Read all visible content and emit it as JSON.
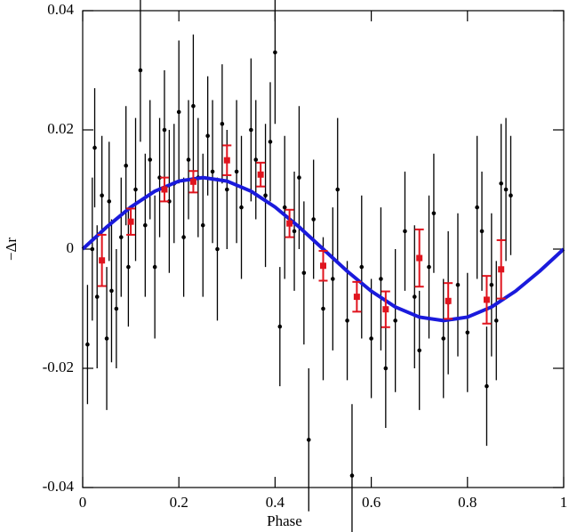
{
  "chart_data": {
    "type": "errorbar",
    "xlabel": "Phase",
    "ylabel": "−Δr",
    "xlim": [
      0,
      1
    ],
    "ylim": [
      -0.04,
      0.04
    ],
    "xticks": [
      0,
      0.2,
      0.4,
      0.6,
      0.8,
      1
    ],
    "yticks": [
      -0.04,
      -0.02,
      0,
      0.02,
      0.04
    ],
    "points": {
      "color": "#000000",
      "x": [
        0.01,
        0.02,
        0.025,
        0.03,
        0.04,
        0.05,
        0.055,
        0.06,
        0.07,
        0.08,
        0.09,
        0.095,
        0.11,
        0.12,
        0.13,
        0.14,
        0.15,
        0.16,
        0.17,
        0.18,
        0.19,
        0.2,
        0.21,
        0.22,
        0.23,
        0.24,
        0.25,
        0.26,
        0.27,
        0.28,
        0.29,
        0.3,
        0.32,
        0.33,
        0.35,
        0.36,
        0.38,
        0.39,
        0.4,
        0.41,
        0.42,
        0.44,
        0.45,
        0.46,
        0.47,
        0.48,
        0.5,
        0.52,
        0.53,
        0.55,
        0.56,
        0.58,
        0.6,
        0.62,
        0.63,
        0.65,
        0.67,
        0.69,
        0.7,
        0.72,
        0.73,
        0.75,
        0.76,
        0.78,
        0.8,
        0.82,
        0.83,
        0.84,
        0.85,
        0.86,
        0.87,
        0.88,
        0.89
      ],
      "values": [
        -0.016,
        0.0,
        0.017,
        -0.008,
        0.009,
        -0.015,
        0.008,
        -0.007,
        -0.01,
        0.002,
        0.014,
        -0.003,
        0.01,
        0.03,
        0.004,
        0.015,
        -0.003,
        0.012,
        0.02,
        0.008,
        0.011,
        0.023,
        0.002,
        0.015,
        0.024,
        0.012,
        0.004,
        0.019,
        0.013,
        0.0,
        0.021,
        0.01,
        0.013,
        0.007,
        0.02,
        0.015,
        0.009,
        0.018,
        0.033,
        -0.013,
        0.007,
        0.003,
        0.012,
        -0.004,
        -0.032,
        0.005,
        -0.01,
        -0.005,
        0.01,
        -0.012,
        -0.038,
        -0.003,
        -0.015,
        -0.005,
        -0.02,
        -0.012,
        0.003,
        -0.008,
        -0.017,
        -0.003,
        0.006,
        -0.015,
        -0.009,
        -0.006,
        -0.014,
        0.007,
        0.003,
        -0.023,
        -0.006,
        -0.012,
        0.011,
        0.01,
        0.009
      ],
      "errors": [
        0.01,
        0.012,
        0.01,
        0.012,
        0.01,
        0.012,
        0.01,
        0.012,
        0.01,
        0.01,
        0.01,
        0.01,
        0.012,
        0.012,
        0.012,
        0.01,
        0.012,
        0.01,
        0.01,
        0.012,
        0.01,
        0.012,
        0.01,
        0.01,
        0.012,
        0.01,
        0.012,
        0.01,
        0.012,
        0.012,
        0.01,
        0.01,
        0.012,
        0.012,
        0.012,
        0.01,
        0.012,
        0.01,
        0.012,
        0.01,
        0.012,
        0.01,
        0.012,
        0.012,
        0.012,
        0.01,
        0.012,
        0.012,
        0.012,
        0.01,
        0.012,
        0.012,
        0.01,
        0.012,
        0.01,
        0.012,
        0.01,
        0.012,
        0.01,
        0.012,
        0.01,
        0.01,
        0.012,
        0.012,
        0.01,
        0.012,
        0.01,
        0.01,
        0.012,
        0.01,
        0.01,
        0.012,
        0.01
      ]
    },
    "binned": {
      "color": "#e0141e",
      "x": [
        0.04,
        0.1,
        0.17,
        0.23,
        0.3,
        0.37,
        0.43,
        0.5,
        0.57,
        0.63,
        0.7,
        0.76,
        0.84,
        0.87
      ],
      "values": [
        -0.0019,
        0.0046,
        0.01,
        0.0113,
        0.0149,
        0.0125,
        0.0043,
        -0.0028,
        -0.008,
        -0.0101,
        -0.0015,
        -0.0087,
        -0.0085,
        -0.0034
      ],
      "errors": [
        0.0043,
        0.0022,
        0.002,
        0.0018,
        0.0025,
        0.002,
        0.0023,
        0.0025,
        0.0025,
        0.003,
        0.0048,
        0.003,
        0.004,
        0.0049
      ]
    },
    "fit": {
      "color": "#1a1adc",
      "x": [
        0,
        0.05,
        0.1,
        0.15,
        0.2,
        0.25,
        0.3,
        0.35,
        0.4,
        0.45,
        0.5,
        0.55,
        0.6,
        0.65,
        0.7,
        0.75,
        0.8,
        0.85,
        0.9,
        0.95,
        1
      ],
      "values": [
        0,
        0.00371,
        0.00705,
        0.00971,
        0.01141,
        0.012,
        0.01141,
        0.00971,
        0.00705,
        0.00371,
        0,
        -0.00371,
        -0.00705,
        -0.00971,
        -0.01141,
        -0.012,
        -0.01141,
        -0.00971,
        -0.00705,
        -0.00371,
        0
      ]
    }
  }
}
